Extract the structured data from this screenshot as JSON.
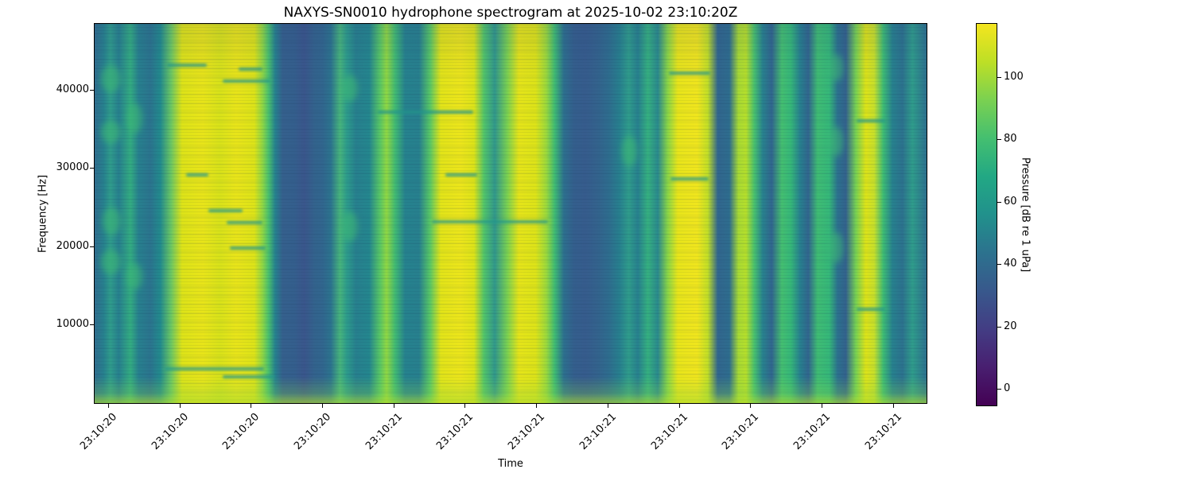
{
  "chart_data": {
    "type": "heatmap",
    "subtype": "spectrogram",
    "title": "NAXYS-SN0010 hydrophone spectrogram at 2025-10-02 23:10:20Z",
    "xlabel": "Time",
    "ylabel": "Frequency [Hz]",
    "grid": false,
    "x_ticks": [
      {
        "label": "23:10:20",
        "pos_pct": 1.63
      },
      {
        "label": "23:10:20",
        "pos_pct": 10.2
      },
      {
        "label": "23:10:20",
        "pos_pct": 18.78
      },
      {
        "label": "23:10:20",
        "pos_pct": 27.35
      },
      {
        "label": "23:10:21",
        "pos_pct": 35.93
      },
      {
        "label": "23:10:21",
        "pos_pct": 44.5
      },
      {
        "label": "23:10:21",
        "pos_pct": 53.08
      },
      {
        "label": "23:10:21",
        "pos_pct": 61.66
      },
      {
        "label": "23:10:21",
        "pos_pct": 70.23
      },
      {
        "label": "23:10:21",
        "pos_pct": 78.81
      },
      {
        "label": "23:10:21",
        "pos_pct": 87.38
      },
      {
        "label": "23:10:21",
        "pos_pct": 95.96
      }
    ],
    "y_axis": {
      "ticks": [
        10000,
        20000,
        30000,
        40000
      ],
      "min": 0,
      "max": 48400
    },
    "colorbar": {
      "label": "Pressure [dB re 1 uPa]",
      "ticks": [
        0,
        20,
        40,
        60,
        80,
        100
      ],
      "vmin": -5.3,
      "vmax": 117,
      "colormap": "viridis",
      "gradient": [
        "#f4e51f",
        "#bddf26",
        "#7ad151",
        "#44bf70",
        "#22a884",
        "#21918c",
        "#2c728e",
        "#38588c",
        "#433d84",
        "#481f70",
        "#440154"
      ]
    },
    "intensity_profile_time_pct_color": [
      [
        0.0,
        "#2f6d8e"
      ],
      [
        1.1,
        "#27818e"
      ],
      [
        1.9,
        "#2f9c8b"
      ],
      [
        2.9,
        "#27808e"
      ],
      [
        4.3,
        "#33ac81"
      ],
      [
        5.3,
        "#27808e"
      ],
      [
        6.7,
        "#2b748e"
      ],
      [
        7.9,
        "#228b8d"
      ],
      [
        9.2,
        "#6cc863"
      ],
      [
        10.5,
        "#dde318"
      ],
      [
        13.0,
        "#e8e419"
      ],
      [
        15.0,
        "#d8e219"
      ],
      [
        17.0,
        "#e8e419"
      ],
      [
        19.2,
        "#dde318"
      ],
      [
        20.2,
        "#8ed645"
      ],
      [
        20.9,
        "#4ac16d"
      ],
      [
        21.7,
        "#26828e"
      ],
      [
        22.6,
        "#35608d"
      ],
      [
        24.0,
        "#345f8d"
      ],
      [
        25.2,
        "#3a568c"
      ],
      [
        26.4,
        "#33638d"
      ],
      [
        27.4,
        "#31668e"
      ],
      [
        28.4,
        "#2c748e"
      ],
      [
        29.5,
        "#47b47c"
      ],
      [
        30.3,
        "#2d9c8b"
      ],
      [
        31.4,
        "#27808e"
      ],
      [
        33.0,
        "#24868e"
      ],
      [
        34.3,
        "#58c765"
      ],
      [
        35.1,
        "#90d743"
      ],
      [
        36.1,
        "#42bb72"
      ],
      [
        37.3,
        "#26828e"
      ],
      [
        39.0,
        "#27808e"
      ],
      [
        40.3,
        "#57c766"
      ],
      [
        41.6,
        "#e2e418"
      ],
      [
        44.0,
        "#ece51b"
      ],
      [
        45.6,
        "#dde318"
      ],
      [
        46.8,
        "#52c569"
      ],
      [
        48.1,
        "#31988b"
      ],
      [
        49.6,
        "#7ad151"
      ],
      [
        51.0,
        "#e5e419"
      ],
      [
        53.0,
        "#dde318"
      ],
      [
        54.3,
        "#9bd93c"
      ],
      [
        55.3,
        "#3fbc73"
      ],
      [
        56.4,
        "#2d708e"
      ],
      [
        57.6,
        "#345f8d"
      ],
      [
        59.0,
        "#365c8d"
      ],
      [
        60.5,
        "#33638d"
      ],
      [
        61.8,
        "#2e6d8e"
      ],
      [
        63.1,
        "#27808e"
      ],
      [
        64.2,
        "#2f9c8b"
      ],
      [
        65.3,
        "#27818e"
      ],
      [
        66.5,
        "#35b080"
      ],
      [
        67.7,
        "#2a8a8d"
      ],
      [
        68.9,
        "#8bd646"
      ],
      [
        70.1,
        "#e8e51a"
      ],
      [
        72.4,
        "#f0e51d"
      ],
      [
        73.7,
        "#c2df26"
      ],
      [
        74.9,
        "#31668e"
      ],
      [
        76.3,
        "#2e6d8e"
      ],
      [
        77.4,
        "#a8db33"
      ],
      [
        78.3,
        "#b5de2b"
      ],
      [
        79.3,
        "#48c16e"
      ],
      [
        80.3,
        "#28828e"
      ],
      [
        81.4,
        "#31668e"
      ],
      [
        82.6,
        "#44bf70"
      ],
      [
        83.7,
        "#35b779"
      ],
      [
        84.8,
        "#27808e"
      ],
      [
        85.8,
        "#31668e"
      ],
      [
        86.9,
        "#3fbc73"
      ],
      [
        88.3,
        "#35b779"
      ],
      [
        89.3,
        "#2c728e"
      ],
      [
        90.3,
        "#33628d"
      ],
      [
        91.5,
        "#77d153"
      ],
      [
        92.7,
        "#dde318"
      ],
      [
        93.7,
        "#c8e02a"
      ],
      [
        94.8,
        "#3dbc74"
      ],
      [
        95.9,
        "#27818e"
      ],
      [
        97.1,
        "#2c728e"
      ],
      [
        98.3,
        "#2f9c8b"
      ],
      [
        100.0,
        "#2d718e"
      ]
    ],
    "streaks_pct": [
      {
        "x": 8.7,
        "y": 10.5,
        "w": 4.8
      },
      {
        "x": 17.3,
        "y": 11.5,
        "w": 2.9
      },
      {
        "x": 15.4,
        "y": 14.7,
        "w": 5.7
      },
      {
        "x": 34.0,
        "y": 22.9,
        "w": 11.5
      },
      {
        "x": 11.0,
        "y": 39.4,
        "w": 2.7
      },
      {
        "x": 42.2,
        "y": 39.4,
        "w": 3.8
      },
      {
        "x": 13.7,
        "y": 48.8,
        "w": 4.1
      },
      {
        "x": 15.9,
        "y": 52.0,
        "w": 4.3
      },
      {
        "x": 40.5,
        "y": 51.8,
        "w": 14.0
      },
      {
        "x": 16.3,
        "y": 58.7,
        "w": 4.3
      },
      {
        "x": 69.0,
        "y": 12.6,
        "w": 5.0
      },
      {
        "x": 69.2,
        "y": 40.5,
        "w": 4.6
      },
      {
        "x": 91.6,
        "y": 25.1,
        "w": 3.4
      },
      {
        "x": 91.6,
        "y": 74.8,
        "w": 3.4
      },
      {
        "x": 8.4,
        "y": 90.6,
        "w": 12.0
      },
      {
        "x": 15.4,
        "y": 92.7,
        "w": 6.2
      }
    ],
    "blobs_pct": [
      {
        "x": 0.8,
        "y": 11.0,
        "w": 2.4,
        "h": 7.0
      },
      {
        "x": 0.8,
        "y": 25.5,
        "w": 2.4,
        "h": 6.0
      },
      {
        "x": 1.0,
        "y": 48.5,
        "w": 2.2,
        "h": 7.0
      },
      {
        "x": 0.8,
        "y": 59.5,
        "w": 2.4,
        "h": 6.5
      },
      {
        "x": 3.9,
        "y": 21.0,
        "w": 1.8,
        "h": 8.0
      },
      {
        "x": 3.9,
        "y": 63.0,
        "w": 1.8,
        "h": 7.0
      },
      {
        "x": 29.6,
        "y": 13.5,
        "w": 2.0,
        "h": 7.0
      },
      {
        "x": 29.6,
        "y": 49.5,
        "w": 2.0,
        "h": 8.0
      },
      {
        "x": 88.2,
        "y": 8.0,
        "w": 1.8,
        "h": 7.0
      },
      {
        "x": 88.2,
        "y": 27.0,
        "w": 1.8,
        "h": 8.0
      },
      {
        "x": 88.2,
        "y": 55.0,
        "w": 1.8,
        "h": 8.0
      },
      {
        "x": 63.4,
        "y": 29.5,
        "w": 1.8,
        "h": 8.0
      }
    ]
  }
}
